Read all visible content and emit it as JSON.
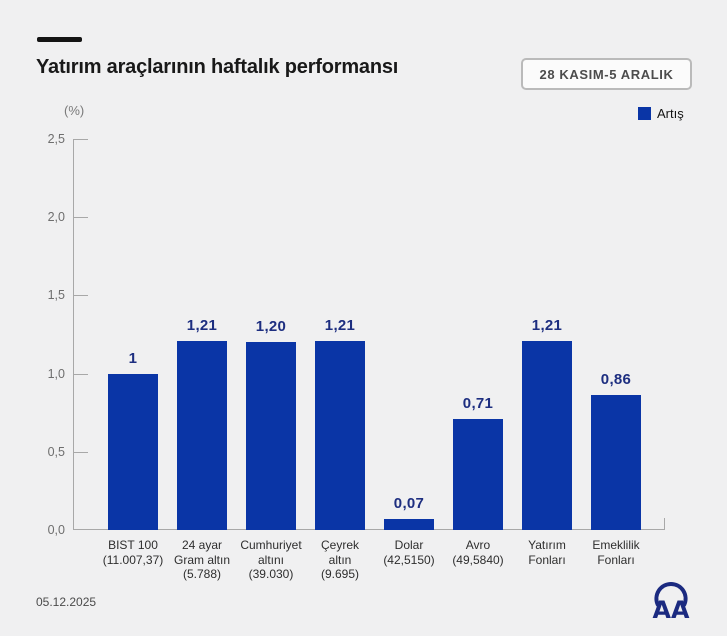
{
  "header": {
    "date_range": "28 KASIM-5 ARALIK"
  },
  "legend": {
    "label": "Artış"
  },
  "footer": {
    "date": "05.12.2025",
    "logo": "aa-anadolu-ajansi-logo"
  },
  "colors": {
    "bar_blue": "#0a35a6",
    "value_text": "#1d2e80",
    "logo_navy": "#1b2a80",
    "background": "#f0f0f1"
  },
  "chart_data": {
    "type": "bar",
    "title": "Yatırım araçlarının haftalık performansı",
    "categories": [
      [
        "BIST 100",
        "(11.007,37)"
      ],
      [
        "24 ayar",
        "Gram altın",
        "(5.788)"
      ],
      [
        "Cumhuriyet",
        "altını",
        "(39.030)"
      ],
      [
        "Çeyrek",
        "altın",
        "(9.695)"
      ],
      [
        "Dolar",
        "(42,5150)"
      ],
      [
        "Avro",
        "(49,5840)"
      ],
      [
        "Yatırım",
        "Fonları"
      ],
      [
        "Emeklilik",
        "Fonları"
      ]
    ],
    "values": [
      1,
      1.21,
      1.2,
      1.21,
      0.07,
      0.71,
      1.21,
      0.86
    ],
    "value_labels": [
      "1",
      "1,21",
      "1,20",
      "1,21",
      "0,07",
      "0,71",
      "1,21",
      "0,86"
    ],
    "xlabel": "",
    "ylabel": "(%)",
    "ylim": [
      0,
      2.5
    ],
    "yticks": {
      "labels": [
        "0,0",
        "0,5",
        "1,0",
        "1,5",
        "2,0",
        "2,5"
      ],
      "values": [
        0,
        0.5,
        1,
        1.5,
        2,
        2.5
      ]
    },
    "legend": [
      {
        "label": "Artış",
        "color": "#0a35a6"
      }
    ],
    "legend_position": "top-right",
    "grid": false
  }
}
